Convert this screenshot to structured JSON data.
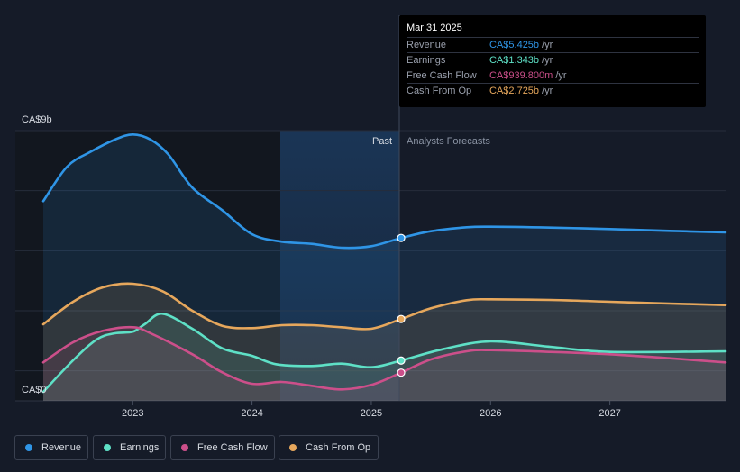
{
  "chart_data": {
    "type": "area",
    "y_axis": {
      "top_label": "CA$9b",
      "bottom_label": "CA$0",
      "ylim": [
        0,
        9
      ]
    },
    "x_axis": {
      "ticks": [
        "2023",
        "2024",
        "2025",
        "2026",
        "2027"
      ],
      "xlim": [
        2022.25,
        2027.97
      ]
    },
    "divider": {
      "date": 2025.25,
      "past_label": "Past",
      "forecast_label": "Analysts Forecasts"
    },
    "series": [
      {
        "name": "Revenue",
        "color": "#2f95e6",
        "points": [
          [
            2022.25,
            6.65
          ],
          [
            2022.45,
            7.8
          ],
          [
            2022.65,
            8.3
          ],
          [
            2022.85,
            8.7
          ],
          [
            2023.0,
            8.87
          ],
          [
            2023.15,
            8.7
          ],
          [
            2023.3,
            8.2
          ],
          [
            2023.5,
            7.1
          ],
          [
            2023.75,
            6.35
          ],
          [
            2024.0,
            5.55
          ],
          [
            2024.25,
            5.3
          ],
          [
            2024.5,
            5.23
          ],
          [
            2024.75,
            5.1
          ],
          [
            2025.0,
            5.15
          ],
          [
            2025.25,
            5.425
          ],
          [
            2025.5,
            5.65
          ],
          [
            2025.8,
            5.78
          ],
          [
            2026.0,
            5.8
          ],
          [
            2026.5,
            5.77
          ],
          [
            2027.0,
            5.72
          ],
          [
            2027.5,
            5.66
          ],
          [
            2027.97,
            5.61
          ]
        ]
      },
      {
        "name": "Earnings",
        "color": "#5ee0c6",
        "points": [
          [
            2022.25,
            0.3
          ],
          [
            2022.5,
            1.35
          ],
          [
            2022.7,
            2.05
          ],
          [
            2022.85,
            2.25
          ],
          [
            2023.0,
            2.3
          ],
          [
            2023.1,
            2.55
          ],
          [
            2023.25,
            2.9
          ],
          [
            2023.5,
            2.4
          ],
          [
            2023.75,
            1.75
          ],
          [
            2024.0,
            1.5
          ],
          [
            2024.2,
            1.22
          ],
          [
            2024.5,
            1.16
          ],
          [
            2024.75,
            1.24
          ],
          [
            2025.0,
            1.12
          ],
          [
            2025.25,
            1.343
          ],
          [
            2025.6,
            1.72
          ],
          [
            2026.0,
            1.98
          ],
          [
            2026.5,
            1.8
          ],
          [
            2027.0,
            1.63
          ],
          [
            2027.97,
            1.65
          ]
        ]
      },
      {
        "name": "Free Cash Flow",
        "color": "#cc4f8a",
        "points": [
          [
            2022.25,
            1.28
          ],
          [
            2022.5,
            1.95
          ],
          [
            2022.75,
            2.33
          ],
          [
            2023.0,
            2.45
          ],
          [
            2023.15,
            2.25
          ],
          [
            2023.5,
            1.55
          ],
          [
            2023.75,
            0.95
          ],
          [
            2024.0,
            0.57
          ],
          [
            2024.25,
            0.63
          ],
          [
            2024.5,
            0.5
          ],
          [
            2024.75,
            0.38
          ],
          [
            2025.0,
            0.53
          ],
          [
            2025.25,
            0.94
          ],
          [
            2025.5,
            1.38
          ],
          [
            2025.8,
            1.65
          ],
          [
            2026.0,
            1.69
          ],
          [
            2026.5,
            1.63
          ],
          [
            2027.0,
            1.55
          ],
          [
            2027.5,
            1.42
          ],
          [
            2027.97,
            1.28
          ]
        ]
      },
      {
        "name": "Cash From Op",
        "color": "#e6a75c",
        "points": [
          [
            2022.25,
            2.55
          ],
          [
            2022.5,
            3.3
          ],
          [
            2022.75,
            3.78
          ],
          [
            2023.0,
            3.9
          ],
          [
            2023.25,
            3.65
          ],
          [
            2023.5,
            3.0
          ],
          [
            2023.75,
            2.5
          ],
          [
            2024.0,
            2.42
          ],
          [
            2024.25,
            2.52
          ],
          [
            2024.5,
            2.52
          ],
          [
            2024.75,
            2.45
          ],
          [
            2025.0,
            2.4
          ],
          [
            2025.25,
            2.725
          ],
          [
            2025.5,
            3.08
          ],
          [
            2025.8,
            3.35
          ],
          [
            2026.0,
            3.38
          ],
          [
            2026.5,
            3.36
          ],
          [
            2027.0,
            3.3
          ],
          [
            2027.5,
            3.24
          ],
          [
            2027.97,
            3.19
          ]
        ]
      }
    ]
  },
  "tooltip": {
    "date": "Mar 31 2025",
    "rows": [
      {
        "label": "Revenue",
        "value": "CA$5.425b",
        "unit": "/yr",
        "color": "#2f95e6"
      },
      {
        "label": "Earnings",
        "value": "CA$1.343b",
        "unit": "/yr",
        "color": "#5ee0c6"
      },
      {
        "label": "Free Cash Flow",
        "value": "CA$939.800m",
        "unit": "/yr",
        "color": "#cc4f8a"
      },
      {
        "label": "Cash From Op",
        "value": "CA$2.725b",
        "unit": "/yr",
        "color": "#e6a75c"
      }
    ]
  },
  "legend": [
    {
      "label": "Revenue",
      "color": "#2f95e6"
    },
    {
      "label": "Earnings",
      "color": "#5ee0c6"
    },
    {
      "label": "Free Cash Flow",
      "color": "#cc4f8a"
    },
    {
      "label": "Cash From Op",
      "color": "#e6a75c"
    }
  ]
}
